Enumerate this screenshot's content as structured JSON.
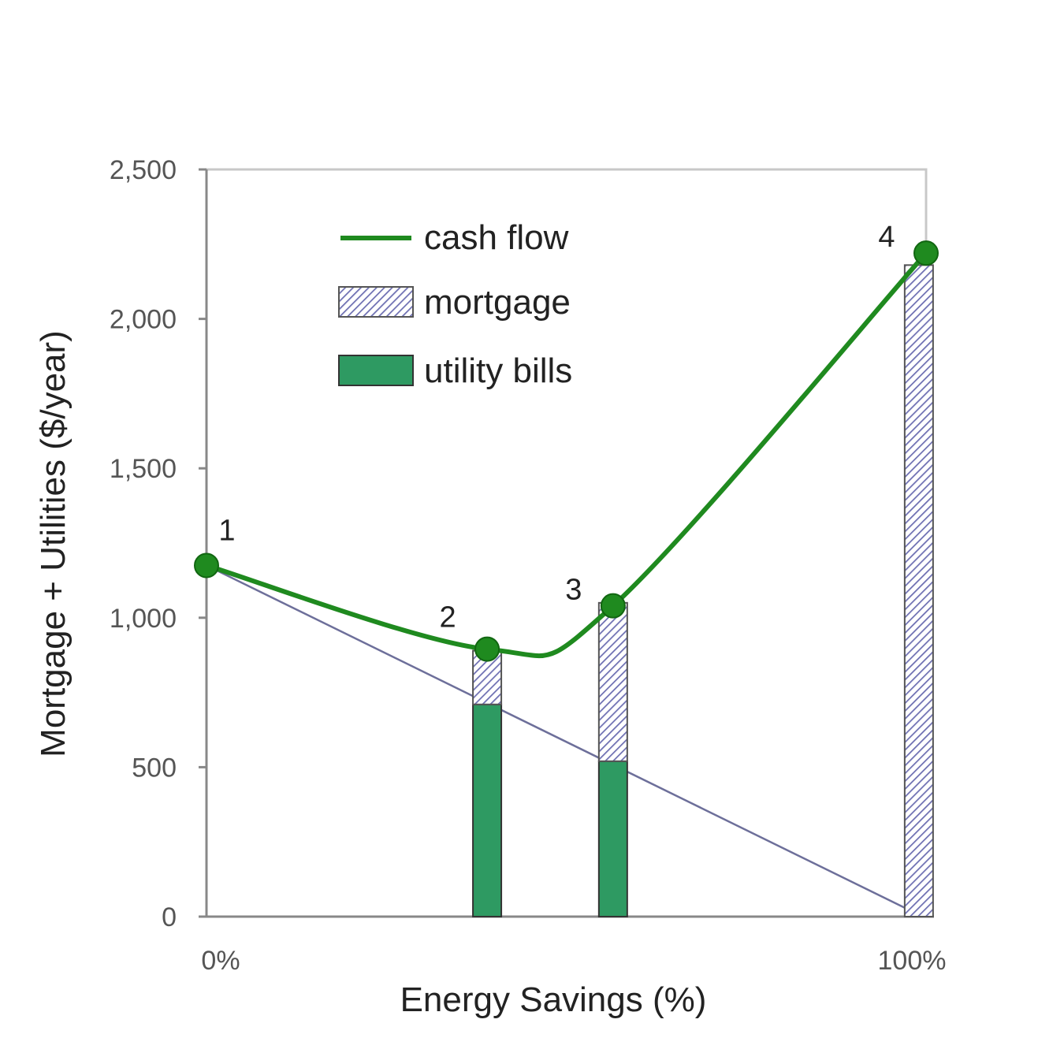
{
  "chart_data": {
    "type": "bar",
    "ylabel": "Mortgage + Utilities ($/year)",
    "xlabel": "Energy Savings (%)",
    "ylim": [
      0,
      2500
    ],
    "xlim": [
      0,
      100
    ],
    "y_ticks": [
      "0",
      "500",
      "1,000",
      "1,500",
      "2,000",
      "2,500"
    ],
    "y_tick_values": [
      0,
      500,
      1000,
      1500,
      2000,
      2500
    ],
    "x_ticks": [
      "0%",
      "100%"
    ],
    "x_tick_values": [
      0,
      100
    ],
    "legend": {
      "placement": "top-left",
      "entries": [
        {
          "label": "cash flow",
          "kind": "line"
        },
        {
          "label": "mortgage",
          "kind": "hatched"
        },
        {
          "label": "utility bills",
          "kind": "solid"
        }
      ]
    },
    "colors": {
      "cash_flow": "#1f8a1f",
      "utility": "#2e9a62",
      "mortgage_hatch": "#6d6fb2",
      "baseline": "#6d6f9a",
      "axis": "#888888"
    },
    "bars": [
      {
        "x": 39,
        "utility": 710,
        "mortgage": 180
      },
      {
        "x": 56.5,
        "utility": 520,
        "mortgage": 530
      },
      {
        "x": 99,
        "utility": 0,
        "mortgage": 2180
      }
    ],
    "cash_flow": [
      {
        "label": "1",
        "x": 0,
        "y": 1175
      },
      {
        "label": "2",
        "x": 39,
        "y": 895
      },
      {
        "label": "3",
        "x": 56.5,
        "y": 1040
      },
      {
        "label": "4",
        "x": 100,
        "y": 2220
      }
    ],
    "utility_baseline": {
      "from": [
        0,
        1175
      ],
      "to": [
        97,
        30
      ]
    }
  }
}
